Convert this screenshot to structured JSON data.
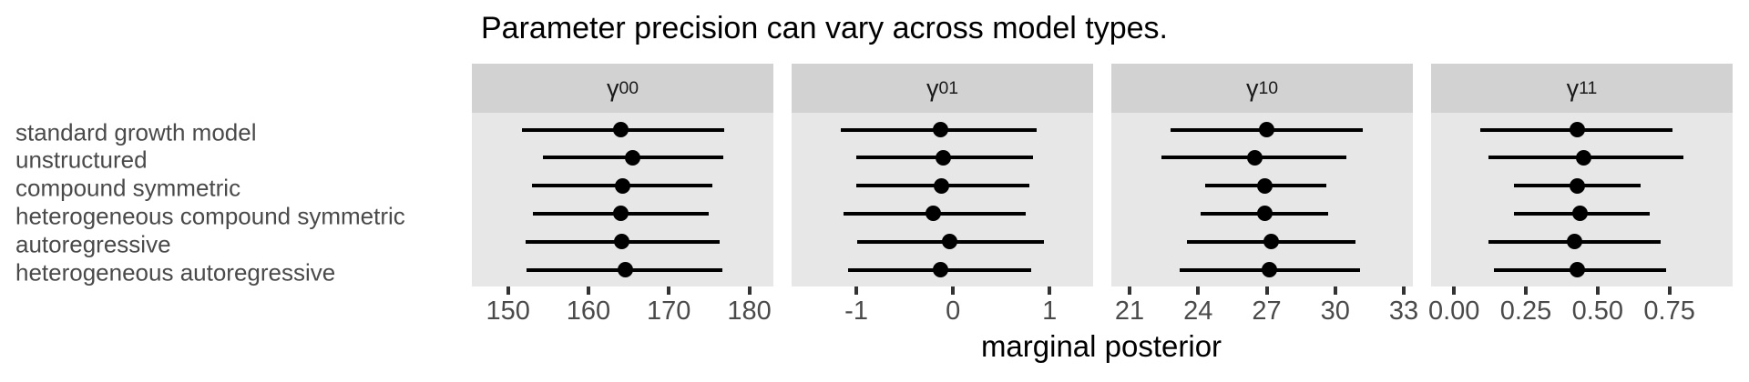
{
  "title": "Parameter precision can vary across model types.",
  "x_axis_title": "marginal posterior",
  "colors": {
    "strip_bg": "#d2d2d2",
    "panel_bg": "#e7e7e7",
    "tick_mark": "#333333",
    "axis_text": "#4a4a4a",
    "data": "#000000",
    "background": "#ffffff"
  },
  "chart_data": {
    "type": "pointrange",
    "orientation": "horizontal",
    "grid": "off",
    "legend": "none",
    "title": "Parameter precision can vary across model types.",
    "xlabel": "marginal posterior",
    "categories": [
      "standard growth model",
      "unstructured",
      "compound symmetric",
      "heterogeneous compound symmetric",
      "autoregressive",
      "heterogeneous autoregressive"
    ],
    "facets": [
      {
        "label": "γ00",
        "label_base": "γ",
        "label_sub": "00",
        "xlim": [
          145.5,
          183.0
        ],
        "ticks": [
          150,
          160,
          170,
          180
        ],
        "tick_labels": [
          "150",
          "160",
          "170",
          "180"
        ],
        "intervals": [
          {
            "lower": 151.7,
            "point": 164.0,
            "upper": 176.9
          },
          {
            "lower": 154.3,
            "point": 165.5,
            "upper": 176.8
          },
          {
            "lower": 153.0,
            "point": 164.3,
            "upper": 175.4
          },
          {
            "lower": 153.1,
            "point": 164.0,
            "upper": 175.0
          },
          {
            "lower": 152.2,
            "point": 164.1,
            "upper": 176.3
          },
          {
            "lower": 152.3,
            "point": 164.6,
            "upper": 176.6
          }
        ]
      },
      {
        "label": "γ01",
        "label_base": "γ",
        "label_sub": "01",
        "xlim": [
          -1.67,
          1.45
        ],
        "ticks": [
          -1,
          0,
          1
        ],
        "tick_labels": [
          "-1",
          "0",
          "1"
        ],
        "intervals": [
          {
            "lower": -1.16,
            "point": -0.13,
            "upper": 0.87
          },
          {
            "lower": -1.0,
            "point": -0.1,
            "upper": 0.83
          },
          {
            "lower": -1.0,
            "point": -0.12,
            "upper": 0.79
          },
          {
            "lower": -1.13,
            "point": -0.2,
            "upper": 0.75
          },
          {
            "lower": -0.99,
            "point": -0.03,
            "upper": 0.94
          },
          {
            "lower": -1.09,
            "point": -0.13,
            "upper": 0.81
          }
        ]
      },
      {
        "label": "γ10",
        "label_base": "γ",
        "label_sub": "10",
        "xlim": [
          20.2,
          33.4
        ],
        "ticks": [
          21,
          24,
          27,
          30,
          33
        ],
        "tick_labels": [
          "21",
          "24",
          "27",
          "30",
          "33"
        ],
        "intervals": [
          {
            "lower": 22.8,
            "point": 27.0,
            "upper": 31.2
          },
          {
            "lower": 22.4,
            "point": 26.5,
            "upper": 30.5
          },
          {
            "lower": 24.3,
            "point": 26.9,
            "upper": 29.6
          },
          {
            "lower": 24.1,
            "point": 26.9,
            "upper": 29.7
          },
          {
            "lower": 23.5,
            "point": 27.2,
            "upper": 30.9
          },
          {
            "lower": 23.2,
            "point": 27.1,
            "upper": 31.1
          }
        ]
      },
      {
        "label": "γ11",
        "label_base": "γ",
        "label_sub": "11",
        "xlim": [
          -0.08,
          0.97
        ],
        "ticks": [
          0,
          0.25,
          0.5,
          0.75
        ],
        "tick_labels": [
          "0.00",
          "0.25",
          "0.50",
          "0.75"
        ],
        "intervals": [
          {
            "lower": 0.09,
            "point": 0.43,
            "upper": 0.76
          },
          {
            "lower": 0.12,
            "point": 0.45,
            "upper": 0.8
          },
          {
            "lower": 0.21,
            "point": 0.43,
            "upper": 0.65
          },
          {
            "lower": 0.21,
            "point": 0.44,
            "upper": 0.68
          },
          {
            "lower": 0.12,
            "point": 0.42,
            "upper": 0.72
          },
          {
            "lower": 0.14,
            "point": 0.43,
            "upper": 0.74
          }
        ]
      }
    ]
  }
}
